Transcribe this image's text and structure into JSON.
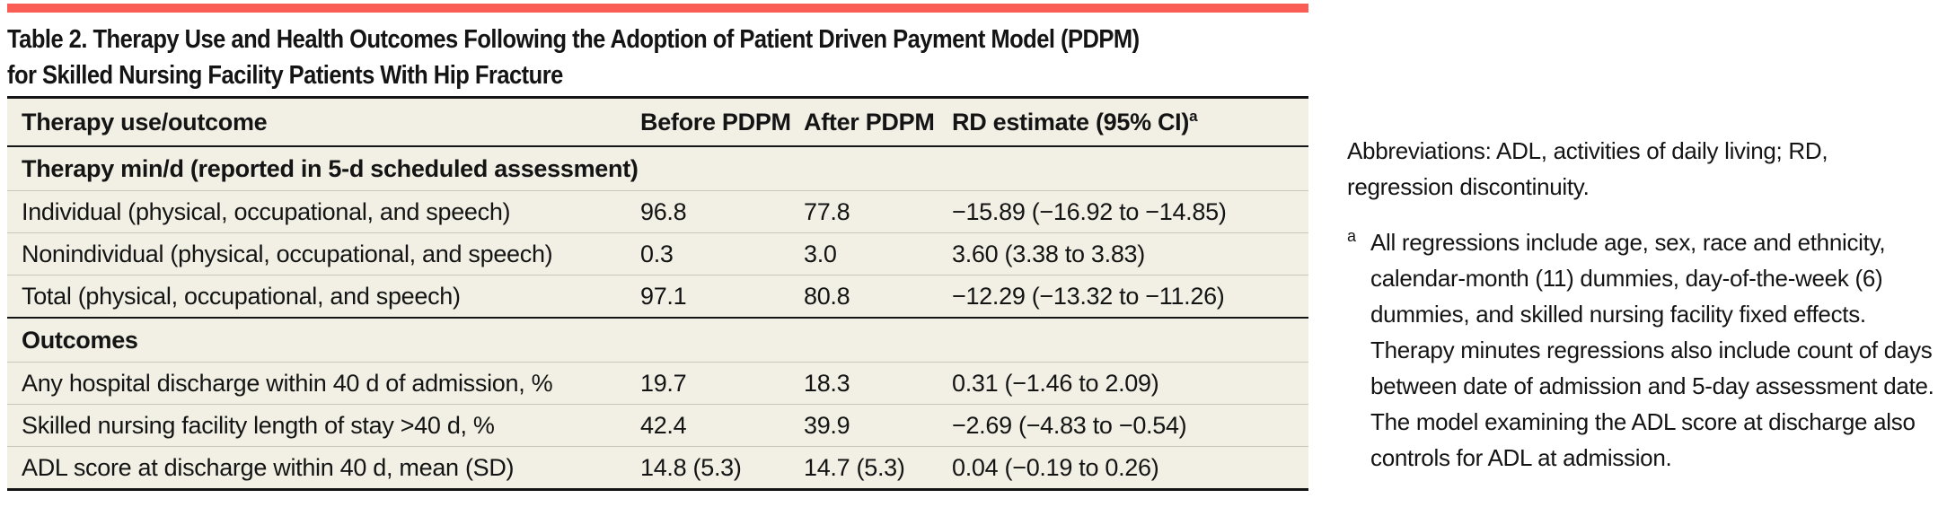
{
  "colors": {
    "accent": "#f95d54",
    "table-bg": "#f2f0e4",
    "rule-thin": "#c9c7b9",
    "rule-thick": "#141414",
    "text": "#141414"
  },
  "title": {
    "line1": "Table 2. Therapy Use and Health Outcomes Following the Adoption of Patient Driven Payment Model (PDPM)",
    "line2": "for Skilled Nursing Facility Patients With Hip Fracture"
  },
  "table": {
    "columns": [
      "Therapy use/outcome",
      "Before PDPM",
      "After PDPM",
      "RD estimate (95% CI)"
    ],
    "header_superscript": "a",
    "sections": [
      {
        "label": "Therapy min/d (reported in 5-d scheduled assessment)",
        "rows": [
          {
            "label": "Individual (physical, occupational, and speech)",
            "before": "96.8",
            "after": "77.8",
            "rd": "−15.89 (−16.92 to −14.85)"
          },
          {
            "label": "Nonindividual (physical, occupational, and speech)",
            "before": "0.3",
            "after": "3.0",
            "rd": "3.60 (3.38 to 3.83)"
          },
          {
            "label": "Total (physical, occupational, and speech)",
            "before": "97.1",
            "after": "80.8",
            "rd": "−12.29 (−13.32 to −11.26)"
          }
        ]
      },
      {
        "label": "Outcomes",
        "rows": [
          {
            "label": "Any hospital discharge within 40 d of admission, %",
            "before": "19.7",
            "after": "18.3",
            "rd": "0.31 (−1.46 to 2.09)"
          },
          {
            "label": "Skilled nursing facility length of stay >40 d, %",
            "before": "42.4",
            "after": "39.9",
            "rd": "−2.69 (−4.83 to −0.54)"
          },
          {
            "label": "ADL score at discharge within 40 d, mean (SD)",
            "before": "14.8 (5.3)",
            "after": "14.7 (5.3)",
            "rd": "0.04 (−0.19 to 0.26)"
          }
        ]
      }
    ]
  },
  "notes": {
    "abbreviations": "Abbreviations: ADL, activities of daily living; RD, regression discontinuity.",
    "footnote_marker": "a",
    "footnote": "All regressions include age, sex, race and ethnicity, calendar-month (11) dummies, day-of-the-week (6) dummies, and skilled nursing facility fixed effects. Therapy minutes regressions also include count of days between date of admission and 5-day assessment date. The model examining the ADL score at discharge also controls for ADL at admission."
  }
}
